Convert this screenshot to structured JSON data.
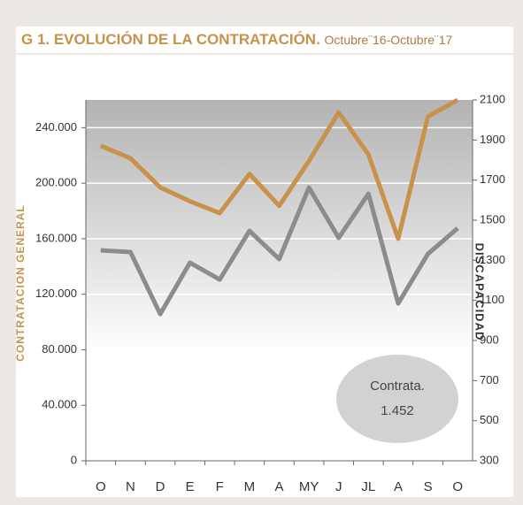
{
  "chart_data": {
    "type": "line",
    "title": "G 1. EVOLUCIÓN DE LA CONTRATACIÓN.",
    "subtitle": "Octubre¨16-Octubre¨17",
    "ylabel": "CONTRATACION GENERAL",
    "y2label": "DISCAPACIDAD",
    "categories": [
      "O",
      "N",
      "D",
      "E",
      "F",
      "M",
      "A",
      "MY",
      "J",
      "JL",
      "A",
      "S",
      "O"
    ],
    "series": [
      {
        "name": "CONTRATACION GENERAL",
        "color": "#c8924a",
        "values": [
          227000,
          218000,
          197000,
          187000,
          178500,
          206700,
          183700,
          216000,
          251000,
          220700,
          160000,
          248000,
          260000
        ]
      },
      {
        "name": "DISCAPACIDAD",
        "color": "#8c8c8c",
        "axis": "y2",
        "values": [
          1350,
          1341,
          1032,
          1288,
          1204,
          1447,
          1306,
          1663,
          1412,
          1632,
          1085,
          1332,
          1460
        ]
      }
    ],
    "ylim": [
      0,
      260000
    ],
    "yticks": [
      0,
      {
        "value": 40000,
        "label": "40.000"
      },
      {
        "value": 80000,
        "label": "80.000"
      },
      {
        "value": 120000,
        "label": "120.000"
      },
      {
        "value": 160000,
        "label": "160.000"
      },
      {
        "value": 200000,
        "label": "200.000"
      },
      {
        "value": 240000,
        "label": "240.000"
      }
    ],
    "y2lim": [
      300,
      2100
    ],
    "y2ticks": [
      300,
      500,
      700,
      900,
      1100,
      1300,
      1500,
      1700,
      1900,
      2100
    ],
    "grid": true,
    "annotation": [
      "Contrata.",
      "1.452"
    ]
  }
}
